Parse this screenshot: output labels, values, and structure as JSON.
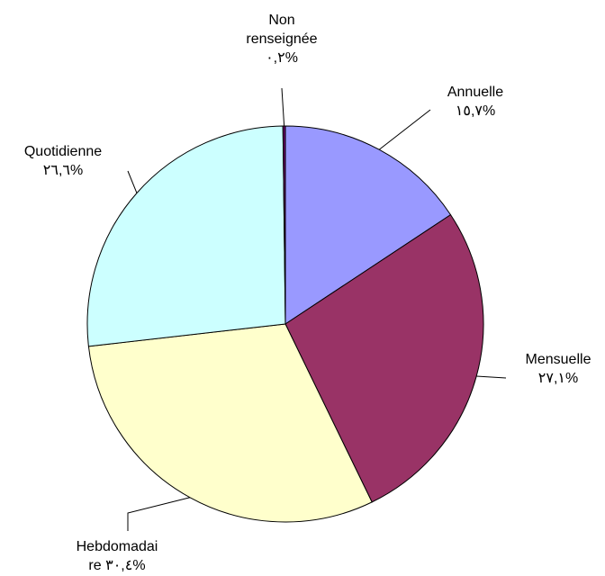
{
  "chart_data": {
    "type": "pie",
    "categories": [
      "Annuelle",
      "Mensuelle",
      "Hebdomadaire",
      "Quotidienne",
      "Non renseignée"
    ],
    "values": [
      15.7,
      27.1,
      30.4,
      26.6,
      0.2
    ],
    "value_labels": [
      "١٥,٧%",
      "٢٧,١%",
      "٣٠,٤%",
      "٢٦,٦%",
      "٠,٢%"
    ],
    "colors": [
      "#9999ff",
      "#993366",
      "#ffffcc",
      "#ccffff",
      "#660066"
    ]
  }
}
